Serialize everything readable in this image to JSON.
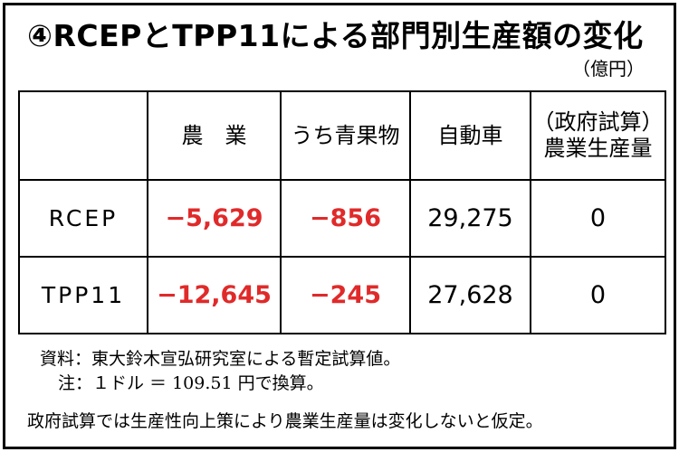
{
  "title": "④RCEPとTPP11による部門別生産額の変化",
  "unit": "（億円）",
  "table": {
    "headers": [
      "",
      "農　業",
      "うち青果物",
      "自動車",
      "（政府試算）",
      "農業生産量"
    ],
    "rows": [
      {
        "label": "RCEP",
        "agriculture": "−5,629",
        "fruits_vegetables": "−856",
        "automobiles": "29,275",
        "gov_estimate": "0"
      },
      {
        "label": "TPP11",
        "agriculture": "−12,645",
        "fruits_vegetables": "−245",
        "automobiles": "27,628",
        "gov_estimate": "0"
      }
    ]
  },
  "notes": {
    "source": "資料：東大鈴木宣弘研究室による暫定試算値。",
    "note": "注：１ドル ＝ 109.51 円で換算。"
  },
  "footer": "政府試算では生産性向上策により農業生産量は変化しないと仮定。",
  "colors": {
    "negative": "#e02a2a",
    "text": "#000000",
    "border": "#000000"
  }
}
